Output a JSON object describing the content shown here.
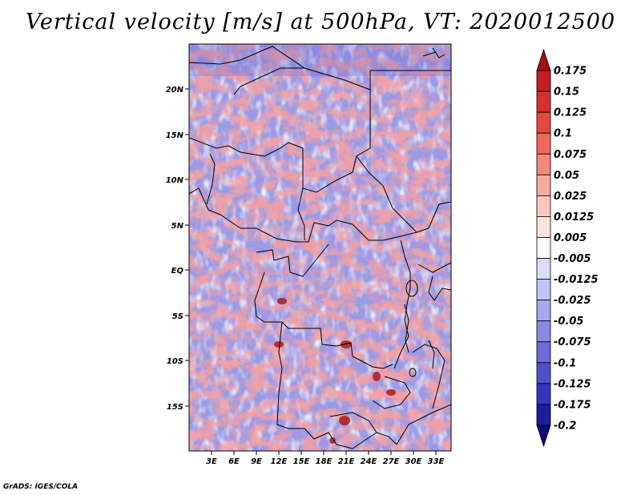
{
  "title": "Vertical velocity [m/s] at 500hPa, VT: 2020012500",
  "credit": "GrADS: IGES/COLA",
  "map": {
    "lon_ticks": [
      "3E",
      "6E",
      "9E",
      "12E",
      "15E",
      "18E",
      "21E",
      "24E",
      "27E",
      "30E",
      "33E"
    ],
    "lat_ticks": [
      "20N",
      "15N",
      "10N",
      "5N",
      "EQ",
      "5S",
      "10S",
      "15S"
    ]
  },
  "colorbar": {
    "labels": [
      "0.175",
      "0.15",
      "0.125",
      "0.1",
      "0.075",
      "0.05",
      "0.025",
      "0.0125",
      "0.005",
      "-0.005",
      "-0.0125",
      "-0.025",
      "-0.05",
      "-0.075",
      "-0.1",
      "-0.125",
      "-0.175",
      "-0.2"
    ],
    "colors_top_to_bottom": [
      "#a50f15",
      "#c21f24",
      "#d7312f",
      "#e34a3f",
      "#ec6a5b",
      "#f28a7b",
      "#f6ab9d",
      "#fac8bf",
      "#fde3de",
      "#ffffff",
      "#dcdcf8",
      "#c4c4f3",
      "#a8a8ec",
      "#8a8ae3",
      "#6c6cd8",
      "#4f4fcb",
      "#3434b8",
      "#1c1c9c",
      "#0b0b78"
    ]
  }
}
